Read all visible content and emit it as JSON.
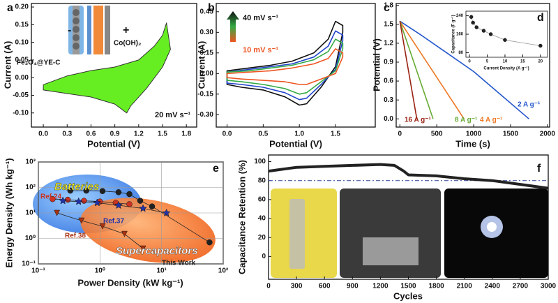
{
  "chart_data": [
    {
      "type": "area",
      "panel_label": "a",
      "x_label": "Potential (V)",
      "y_label": "Current (A)",
      "closed": true,
      "x": [
        0,
        0.3,
        0.6,
        0.9,
        1.2,
        1.4,
        1.5,
        1.55,
        1.6,
        1.5,
        1.3,
        1.1,
        1.05,
        0.9,
        0.6,
        0.3,
        0
      ],
      "series": [
        {
          "color": "#66ee22",
          "values": [
            -0.02,
            0.005,
            0.02,
            0.03,
            0.05,
            0.09,
            0.12,
            0.155,
            0.08,
            0.03,
            -0.03,
            -0.08,
            -0.1,
            -0.075,
            -0.055,
            -0.045,
            -0.035
          ]
        }
      ],
      "xlim": [
        -0.15,
        1.93
      ],
      "ylim": [
        -0.14,
        0.21
      ],
      "xticks": [
        {
          "value": 0,
          "label": "0.0"
        },
        0.3,
        0.6,
        0.9,
        1.2,
        1.5,
        1.8
      ],
      "yticks": [
        {
          "value": -0.1,
          "label": "-0.10"
        },
        -0.05,
        {
          "value": 0,
          "label": "0.00"
        },
        0.05,
        {
          "value": 0.1,
          "label": "0.10"
        },
        0.15,
        {
          "value": 0.2,
          "label": "0.20"
        }
      ],
      "annotations": [
        "20 mV s⁻¹",
        "-",
        "+",
        "Fe₃O₄@YE-C",
        "Co(OH)₂"
      ]
    },
    {
      "type": "line",
      "panel_label": "b",
      "x_label": "Potential (V)",
      "y_label": "Current (A)",
      "closed": true,
      "x": [
        0,
        0.3,
        0.6,
        0.9,
        1.2,
        1.4,
        1.5,
        1.6,
        1.6,
        1.5,
        1.3,
        1.1,
        1.0,
        0.8,
        0.5,
        0.2,
        0
      ],
      "series": [
        {
          "color": "#111111",
          "values": [
            0.02,
            0.04,
            0.06,
            0.09,
            0.15,
            0.25,
            0.38,
            0.35,
            0.3,
            0.05,
            -0.1,
            -0.22,
            -0.23,
            -0.17,
            -0.12,
            -0.1,
            -0.08
          ]
        },
        {
          "color": "#2244cc",
          "values": [
            0.01,
            0.03,
            0.05,
            0.07,
            0.12,
            0.2,
            0.31,
            0.28,
            0.24,
            0.03,
            -0.08,
            -0.18,
            -0.19,
            -0.14,
            -0.1,
            -0.08,
            -0.07
          ]
        },
        {
          "color": "#33aa44",
          "values": [
            0.01,
            0.02,
            0.04,
            0.06,
            0.1,
            0.16,
            0.25,
            0.22,
            0.18,
            0.02,
            -0.06,
            -0.14,
            -0.15,
            -0.11,
            -0.08,
            -0.06,
            -0.05
          ]
        },
        {
          "color": "#ee5522",
          "values": [
            0,
            0.01,
            0.02,
            0.04,
            0.07,
            0.11,
            0.18,
            0.15,
            0.12,
            0,
            -0.04,
            -0.08,
            -0.08,
            -0.06,
            -0.05,
            -0.04,
            -0.03
          ]
        }
      ],
      "xlim": [
        -0.15,
        2.05
      ],
      "ylim": [
        -0.39,
        0.51
      ],
      "xticks": [
        {
          "value": 0,
          "label": "0.0"
        },
        0.5,
        {
          "value": 1,
          "label": "1.0"
        },
        1.5
      ],
      "yticks": [
        {
          "value": -0.3,
          "label": "-0.30"
        },
        -0.15,
        {
          "value": 0,
          "label": "0.00"
        },
        0.15,
        {
          "value": 0.3,
          "label": "0.30"
        },
        0.45
      ],
      "annotations": [
        "40 mV s⁻¹",
        "10 mV s⁻¹"
      ]
    },
    {
      "type": "line",
      "panel_label": "c",
      "x_label": "Time (s)",
      "y_label": "Potential (V)",
      "series": [
        {
          "name": "2 A g⁻¹",
          "color": "#2255cc",
          "x": [
            0,
            300,
            1000,
            1750
          ],
          "values": [
            1.55,
            1.32,
            0.75,
            0
          ]
        },
        {
          "name": "4 A g⁻¹",
          "color": "#ee7722",
          "x": [
            0,
            870
          ],
          "values": [
            1.55,
            0
          ]
        },
        {
          "name": "8 A g⁻¹",
          "color": "#66aa33",
          "x": [
            0,
            450
          ],
          "values": [
            1.55,
            0
          ]
        },
        {
          "name": "16 A g⁻¹",
          "color": "#992211",
          "x": [
            0,
            230
          ],
          "values": [
            1.55,
            0
          ]
        }
      ],
      "xlim": [
        -50,
        2030
      ],
      "ylim": [
        -0.13,
        1.83
      ],
      "xticks": [
        0,
        500,
        1000,
        1500,
        2000
      ],
      "yticks": [
        {
          "value": 0,
          "label": "0.0"
        },
        0.3,
        0.6,
        0.9,
        1.2,
        1.5,
        1.8
      ]
    },
    {
      "type": "scatter",
      "panel_label": "d",
      "x_label": "Current Density (A g⁻¹)",
      "y_label": "Capacitance (F g⁻¹)",
      "trendline": true,
      "series": [
        {
          "color": "#222222",
          "marker": "circle",
          "x": [
            0.5,
            1,
            2,
            4,
            6,
            10,
            20
          ],
          "values": [
            235,
            210,
            190,
            175,
            160,
            135,
            110
          ]
        }
      ],
      "xlim": [
        -1,
        22
      ],
      "ylim": [
        60,
        260
      ],
      "xticks": [
        0,
        5,
        10,
        15,
        20
      ],
      "yticks": [
        80,
        160,
        240
      ]
    },
    {
      "type": "scatter",
      "panel_label": "e",
      "x_label": "Power Density (kW kg⁻¹)",
      "y_label": "Energy Density (Wh kg⁻¹)",
      "xlog": true,
      "ylog": true,
      "grid": true,
      "connect": true,
      "series": [
        {
          "name": "This Work",
          "color": "#222222",
          "marker": "circle",
          "x": [
            0.33,
            0.6,
            1.1,
            2,
            3,
            4.5,
            7,
            60
          ],
          "values": [
            75,
            75,
            72,
            65,
            55,
            30,
            18,
            0.7
          ]
        },
        {
          "name": "Ref.24",
          "color": "#cc3322",
          "marker": "circle",
          "x": [
            0.17,
            0.3,
            0.55,
            1,
            1.8,
            3
          ],
          "values": [
            35,
            33,
            30,
            28,
            25,
            22
          ]
        },
        {
          "name": "Ref.37",
          "color": "#2233aa",
          "marker": "star",
          "x": [
            0.25,
            0.45,
            0.9,
            2,
            5,
            12
          ],
          "values": [
            30,
            28,
            25,
            20,
            15,
            10
          ]
        },
        {
          "name": "Ref.38",
          "color": "#aa3311",
          "marker": "triangle",
          "x": [
            0.2,
            0.5,
            1.1,
            2.5,
            5
          ],
          "values": [
            10,
            5,
            3,
            1.5,
            0.4
          ]
        }
      ],
      "xlim": [
        0.1,
        100
      ],
      "ylim": [
        0.1,
        1000
      ],
      "xticks": [
        {
          "value": 0.1,
          "label": "10⁻¹"
        },
        {
          "value": 1,
          "label": "10⁰"
        },
        {
          "value": 10,
          "label": "10¹"
        },
        {
          "value": 100,
          "label": "10²"
        }
      ],
      "yticks": [
        {
          "value": 0.1,
          "label": "10⁻¹"
        },
        {
          "value": 1,
          "label": "10⁰"
        },
        {
          "value": 10,
          "label": "10¹"
        },
        {
          "value": 100,
          "label": "10²"
        },
        {
          "value": 1000,
          "label": "10³"
        }
      ],
      "annotations": [
        "Batteries",
        "Supercapacitors"
      ]
    },
    {
      "type": "line",
      "panel_label": "f",
      "x_label": "Cycles",
      "y_label": "Capacitance Retention (%)",
      "x": [
        0,
        150,
        300,
        600,
        900,
        1200,
        1350,
        1450,
        1500,
        1800,
        2100,
        2400,
        2700,
        3000
      ],
      "series": [
        {
          "color": "#222222",
          "values": [
            90,
            92,
            94,
            95,
            96,
            97,
            96,
            90,
            86,
            85,
            82,
            80,
            76,
            72
          ]
        }
      ],
      "hline": {
        "value": 80,
        "color": "#4a5aa8"
      },
      "xlim": [
        0,
        3000
      ],
      "ylim": [
        -24,
        107
      ],
      "xticks": [
        0,
        300,
        600,
        900,
        1200,
        1500,
        1800,
        2100,
        2400,
        2700,
        3000
      ],
      "yticks": [
        0,
        20,
        40,
        60,
        80,
        100
      ]
    }
  ]
}
